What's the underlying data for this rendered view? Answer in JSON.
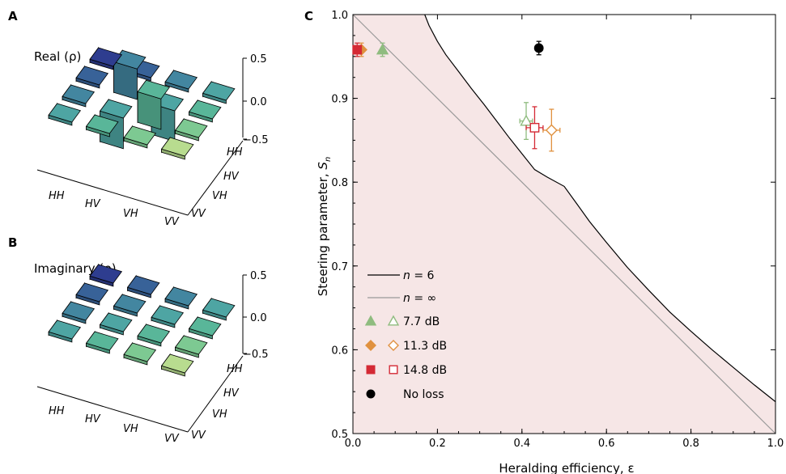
{
  "panels": {
    "A": {
      "letter": "A",
      "title": "Real (ρ)",
      "z_ticks": [
        "0.5",
        "0.0",
        "−0.5"
      ]
    },
    "B": {
      "letter": "B",
      "title": "Imaginary (ρ)",
      "z_ticks": [
        "0.5",
        "0.0",
        "−0.5"
      ]
    },
    "C": {
      "letter": "C"
    }
  },
  "basis_labels": [
    "HH",
    "HV",
    "VH",
    "VV"
  ],
  "chart_data": [
    {
      "type": "bar3d",
      "title": "Real (ρ)",
      "row_labels": [
        "HH",
        "HV",
        "VH",
        "VV"
      ],
      "col_labels": [
        "HH",
        "HV",
        "VH",
        "VV"
      ],
      "zlim": [
        -0.5,
        0.5
      ],
      "values": [
        [
          0.03,
          0.03,
          0.0,
          0.0
        ],
        [
          0.03,
          0.45,
          -0.45,
          0.0
        ],
        [
          0.0,
          -0.45,
          0.45,
          0.03
        ],
        [
          0.0,
          0.0,
          0.03,
          0.03
        ]
      ]
    },
    {
      "type": "bar3d",
      "title": "Imaginary (ρ)",
      "row_labels": [
        "HH",
        "HV",
        "VH",
        "VV"
      ],
      "col_labels": [
        "HH",
        "HV",
        "VH",
        "VV"
      ],
      "zlim": [
        -0.5,
        0.5
      ],
      "values": [
        [
          0.0,
          0.0,
          0.0,
          0.0
        ],
        [
          0.0,
          0.0,
          0.0,
          0.0
        ],
        [
          0.0,
          0.0,
          0.0,
          0.0
        ],
        [
          0.0,
          0.0,
          0.0,
          0.0
        ]
      ]
    },
    {
      "type": "scatter",
      "xlabel": "Heralding efficiency, ε",
      "ylabel_main": "Steering parameter, ",
      "ylabel_sym": "S",
      "ylabel_sub": "n",
      "xlim": [
        0.0,
        1.0
      ],
      "ylim": [
        0.5,
        1.0
      ],
      "xticks": [
        "0.0",
        "0.2",
        "0.4",
        "0.6",
        "0.8",
        "1.0"
      ],
      "yticks": [
        "0.5",
        "0.6",
        "0.7",
        "0.8",
        "0.9",
        "1.0"
      ],
      "curves": [
        {
          "name": "n = 6",
          "sym": "n",
          "rest": " = 6",
          "color": "#000000",
          "x": [
            0.17,
            0.18,
            0.2,
            0.22,
            0.25,
            0.28,
            0.31,
            0.34,
            0.37,
            0.4,
            0.43,
            0.46,
            0.5,
            0.53,
            0.56,
            0.6,
            0.65,
            0.7,
            0.75,
            0.8,
            0.85,
            0.9,
            0.95,
            1.0
          ],
          "y": [
            1.0,
            0.987,
            0.968,
            0.952,
            0.932,
            0.912,
            0.893,
            0.873,
            0.853,
            0.834,
            0.815,
            0.806,
            0.795,
            0.774,
            0.753,
            0.728,
            0.698,
            0.671,
            0.645,
            0.622,
            0.6,
            0.579,
            0.558,
            0.538
          ]
        },
        {
          "name": "n = ∞",
          "sym": "n",
          "rest": " = ∞",
          "color": "#999999",
          "x": [
            0.0,
            1.0
          ],
          "y": [
            1.0,
            0.5
          ]
        }
      ],
      "series": [
        {
          "name": "7.7 dB",
          "marker": "triangle",
          "color": "#8fbc7f",
          "points": [
            {
              "x": 0.07,
              "y": 0.958,
              "yerr": 0.008,
              "xerr": 0.0,
              "filled": true
            },
            {
              "x": 0.41,
              "y": 0.873,
              "yerr": 0.022,
              "xerr": 0.015,
              "filled": false
            }
          ]
        },
        {
          "name": "11.3 dB",
          "marker": "diamond",
          "color": "#e0913f",
          "points": [
            {
              "x": 0.02,
              "y": 0.958,
              "yerr": 0.008,
              "xerr": 0.0,
              "filled": true
            },
            {
              "x": 0.47,
              "y": 0.862,
              "yerr": 0.025,
              "xerr": 0.02,
              "filled": false
            }
          ]
        },
        {
          "name": "14.8 dB",
          "marker": "square",
          "color": "#d42a35",
          "points": [
            {
              "x": 0.01,
              "y": 0.958,
              "yerr": 0.008,
              "xerr": 0.0,
              "filled": true
            },
            {
              "x": 0.43,
              "y": 0.865,
              "yerr": 0.025,
              "xerr": 0.02,
              "filled": false
            }
          ]
        },
        {
          "name": "No loss",
          "marker": "circle",
          "color": "#000000",
          "points": [
            {
              "x": 0.44,
              "y": 0.96,
              "yerr": 0.008,
              "xerr": 0.0,
              "filled": true
            }
          ]
        }
      ],
      "shaded_color": "#f6e6e6"
    }
  ]
}
